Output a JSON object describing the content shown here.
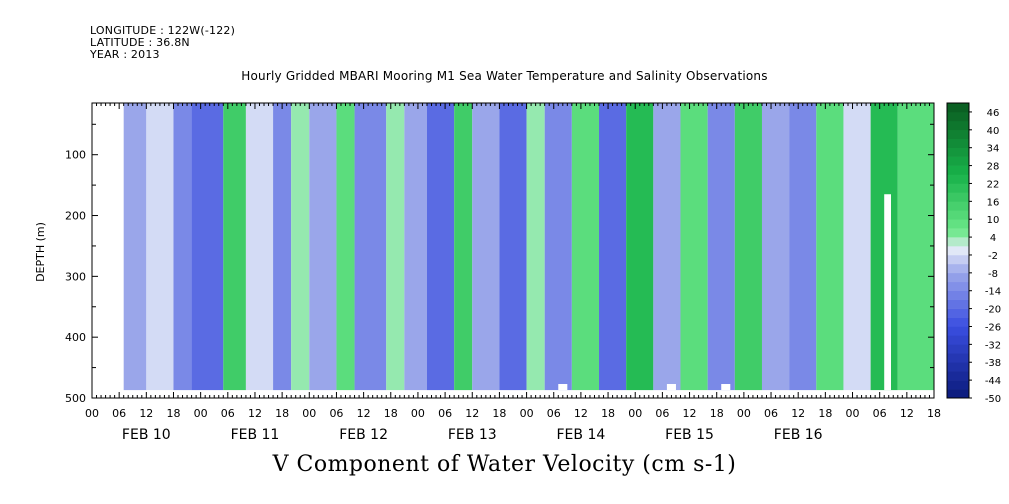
{
  "header": {
    "longitude": "LONGITUDE : 122W(-122)",
    "latitude": "LATITUDE : 36.8N",
    "year": "YEAR : 2013"
  },
  "colors": {
    "strong_negative": "#0a1a7a",
    "negative": "#9aa6ea",
    "near_zero": "#e6ecf8",
    "positive": "#6de88a",
    "strong_positive": "#0a5a20",
    "missing": "#ffffff"
  },
  "chart_data": {
    "type": "heatmap",
    "title": "Hourly Gridded MBARI Mooring M1 Sea Water Temperature and Salinity Observations",
    "xlabel": "V Component of Water Velocity (cm s-1)",
    "ylabel": "DEPTH (m)",
    "y_axis": {
      "range": [
        500,
        15
      ],
      "inverted": true,
      "ticks": [
        "100",
        "200",
        "300",
        "400",
        "500"
      ]
    },
    "x_axis": {
      "hour_ticks": [
        "00",
        "06",
        "12",
        "18",
        "00",
        "06",
        "12",
        "18",
        "00",
        "06",
        "12",
        "18",
        "00",
        "06",
        "12",
        "18",
        "00",
        "06",
        "12",
        "18",
        "00",
        "06",
        "12",
        "18",
        "00",
        "06",
        "12",
        "18",
        "00",
        "06",
        "12",
        "18"
      ],
      "day_labels": [
        "FEB 10",
        "FEB 11",
        "FEB 12",
        "FEB 13",
        "FEB 14",
        "FEB 15",
        "FEB 16"
      ],
      "range_hours": [
        0,
        186
      ],
      "data_start_hour": 7
    },
    "colorbar": {
      "labels": [
        "46",
        "40",
        "34",
        "28",
        "22",
        "16",
        "10",
        "4",
        "-2",
        "-8",
        "-14",
        "-20",
        "-26",
        "-32",
        "-38",
        "-44",
        "-50"
      ],
      "range": [
        -50,
        49
      ],
      "step": 3
    },
    "profile_bands": [
      {
        "start_hour": 7,
        "end_hour": 12,
        "v": -8
      },
      {
        "start_hour": 12,
        "end_hour": 18,
        "v": -2
      },
      {
        "start_hour": 18,
        "end_hour": 22,
        "v": -14
      },
      {
        "start_hour": 22,
        "end_hour": 29,
        "v": -20
      },
      {
        "start_hour": 29,
        "end_hour": 34,
        "v": 16
      },
      {
        "start_hour": 34,
        "end_hour": 40,
        "v": -2
      },
      {
        "start_hour": 40,
        "end_hour": 44,
        "v": -14
      },
      {
        "start_hour": 44,
        "end_hour": 48,
        "v": 4
      },
      {
        "start_hour": 48,
        "end_hour": 54,
        "v": -8
      },
      {
        "start_hour": 54,
        "end_hour": 58,
        "v": 10
      },
      {
        "start_hour": 58,
        "end_hour": 65,
        "v": -14
      },
      {
        "start_hour": 65,
        "end_hour": 69,
        "v": 4
      },
      {
        "start_hour": 69,
        "end_hour": 74,
        "v": -8
      },
      {
        "start_hour": 74,
        "end_hour": 80,
        "v": -20
      },
      {
        "start_hour": 80,
        "end_hour": 84,
        "v": 16
      },
      {
        "start_hour": 84,
        "end_hour": 90,
        "v": -8
      },
      {
        "start_hour": 90,
        "end_hour": 96,
        "v": -20
      },
      {
        "start_hour": 96,
        "end_hour": 100,
        "v": 4
      },
      {
        "start_hour": 100,
        "end_hour": 106,
        "v": -14
      },
      {
        "start_hour": 106,
        "end_hour": 112,
        "v": 10
      },
      {
        "start_hour": 112,
        "end_hour": 118,
        "v": -20
      },
      {
        "start_hour": 118,
        "end_hour": 124,
        "v": 22
      },
      {
        "start_hour": 124,
        "end_hour": 130,
        "v": -8
      },
      {
        "start_hour": 130,
        "end_hour": 136,
        "v": 10
      },
      {
        "start_hour": 136,
        "end_hour": 142,
        "v": -14
      },
      {
        "start_hour": 142,
        "end_hour": 148,
        "v": 16
      },
      {
        "start_hour": 148,
        "end_hour": 154,
        "v": -8
      },
      {
        "start_hour": 154,
        "end_hour": 160,
        "v": -14
      },
      {
        "start_hour": 160,
        "end_hour": 166,
        "v": 10
      },
      {
        "start_hour": 166,
        "end_hour": 172,
        "v": -2
      },
      {
        "start_hour": 172,
        "end_hour": 178,
        "v": 22
      },
      {
        "start_hour": 178,
        "end_hour": 186,
        "v": 10
      }
    ],
    "gaps": [
      {
        "start_hour": 175,
        "end_hour": 176.5,
        "depth_top": 165,
        "depth_bottom": 487
      },
      {
        "start_hour": 103,
        "end_hour": 105,
        "depth_top": 477,
        "depth_bottom": 487
      },
      {
        "start_hour": 127,
        "end_hour": 129,
        "depth_top": 477,
        "depth_bottom": 487
      },
      {
        "start_hour": 139,
        "end_hour": 141,
        "depth_top": 477,
        "depth_bottom": 487
      }
    ]
  }
}
